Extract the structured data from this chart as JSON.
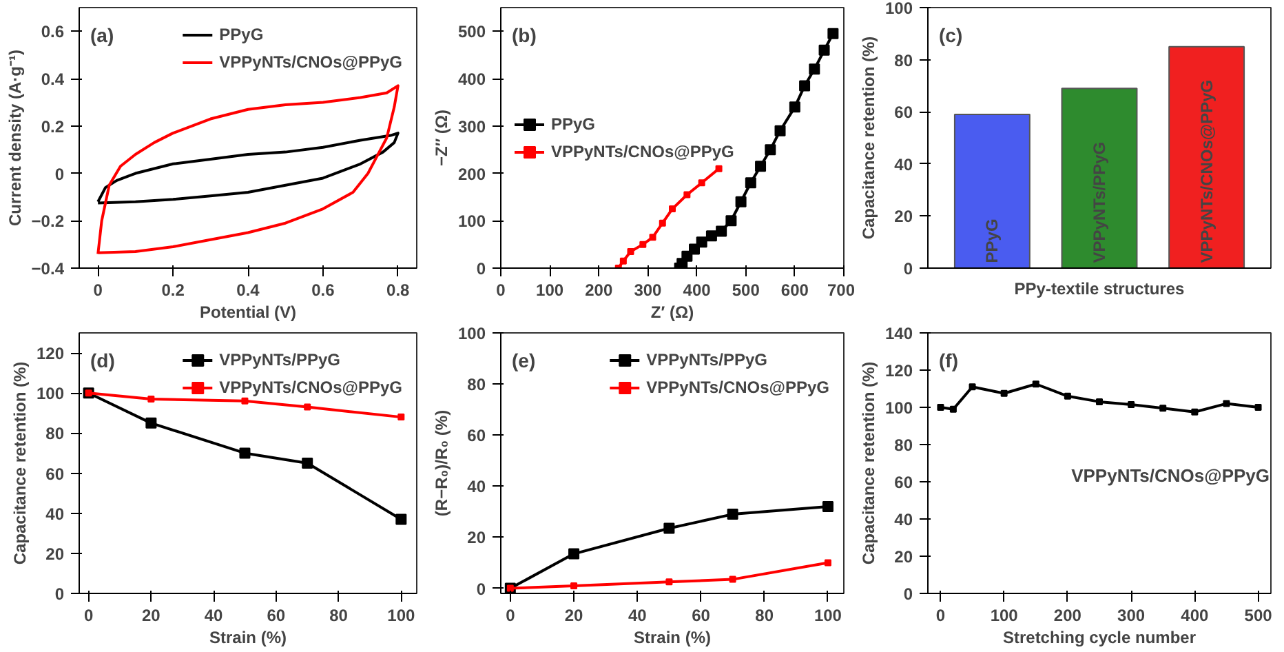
{
  "chart_data": [
    {
      "type": "line",
      "annotations": [
        "(a)"
      ],
      "xlabel": "Potential (V)",
      "ylabel": "Current density (A·g⁻¹)",
      "xlim": [
        -0.05,
        0.85
      ],
      "xticks": [
        0.0,
        0.2,
        0.4,
        0.6,
        0.8
      ],
      "ylim": [
        -0.4,
        0.7
      ],
      "yticks": [
        -0.4,
        -0.2,
        0.0,
        0.2,
        0.4,
        0.6
      ],
      "legend": "top right",
      "grid": false,
      "marker": "none",
      "series": [
        {
          "name": "PPyG",
          "color": "#000000",
          "x": [
            0,
            0.02,
            0.05,
            0.1,
            0.2,
            0.3,
            0.4,
            0.5,
            0.6,
            0.7,
            0.78,
            0.8,
            0.79,
            0.76,
            0.7,
            0.65,
            0.6,
            0.5,
            0.4,
            0.3,
            0.2,
            0.1,
            0.0
          ],
          "values": [
            -0.12,
            -0.06,
            -0.03,
            0.0,
            0.04,
            0.06,
            0.08,
            0.09,
            0.11,
            0.14,
            0.16,
            0.17,
            0.13,
            0.09,
            0.04,
            0.01,
            -0.02,
            -0.05,
            -0.08,
            -0.095,
            -0.11,
            -0.12,
            -0.125
          ]
        },
        {
          "name": "VPPyNTs/CNOs@PPyG",
          "color": "#ff0000",
          "x": [
            0,
            0.01,
            0.03,
            0.06,
            0.1,
            0.15,
            0.2,
            0.3,
            0.4,
            0.5,
            0.6,
            0.7,
            0.77,
            0.8,
            0.79,
            0.77,
            0.74,
            0.72,
            0.68,
            0.6,
            0.5,
            0.4,
            0.3,
            0.2,
            0.1,
            0.0
          ],
          "values": [
            -0.34,
            -0.2,
            -0.05,
            0.03,
            0.08,
            0.13,
            0.17,
            0.23,
            0.27,
            0.29,
            0.3,
            0.32,
            0.34,
            0.37,
            0.28,
            0.15,
            0.06,
            0.0,
            -0.08,
            -0.15,
            -0.21,
            -0.25,
            -0.28,
            -0.31,
            -0.33,
            -0.335
          ]
        }
      ]
    },
    {
      "type": "line",
      "annotations": [
        "(b)"
      ],
      "xlabel": "Z′ (Ω)",
      "ylabel": "−Z″ (Ω)",
      "xlim": [
        0,
        700
      ],
      "xticks": [
        0,
        100,
        200,
        300,
        400,
        500,
        600,
        700
      ],
      "ylim": [
        0,
        550
      ],
      "yticks": [
        0,
        100,
        200,
        300,
        400,
        500
      ],
      "legend": "left",
      "grid": false,
      "marker": "square",
      "series": [
        {
          "name": "PPyG",
          "color": "#000000",
          "x": [
            365,
            370,
            380,
            395,
            410,
            430,
            450,
            470,
            490,
            510,
            530,
            550,
            570,
            600,
            620,
            640,
            660,
            678
          ],
          "values": [
            0,
            10,
            25,
            40,
            55,
            68,
            78,
            100,
            140,
            180,
            215,
            250,
            290,
            340,
            385,
            420,
            460,
            495
          ]
        },
        {
          "name": "VPPyNTs/CNOs@PPyG",
          "color": "#ff0000",
          "x": [
            240,
            250,
            265,
            290,
            310,
            330,
            350,
            380,
            410,
            445
          ],
          "values": [
            0,
            15,
            35,
            50,
            65,
            95,
            125,
            155,
            180,
            210
          ]
        }
      ]
    },
    {
      "type": "bar",
      "annotations": [
        "(c)"
      ],
      "xlabel": "PPy-textile structures",
      "ylabel": "Capacitance retention (%)",
      "categories": [
        "PPyG",
        "VPPyNTs/PPyG",
        "VPPyNTs/CNOs@PPyG"
      ],
      "values": [
        59,
        69,
        85
      ],
      "colors": [
        "#4a5cf0",
        "#2e8b2e",
        "#f02020"
      ],
      "ylim": [
        0,
        100
      ],
      "yticks": [
        0,
        20,
        40,
        60,
        80,
        100
      ],
      "grid": false,
      "tick_labels": "y"
    },
    {
      "type": "line",
      "annotations": [
        "(d)"
      ],
      "xlabel": "Strain (%)",
      "ylabel": "Capacitance retention (%)",
      "xlim": [
        -3,
        105
      ],
      "xticks": [
        0,
        20,
        40,
        60,
        80,
        100
      ],
      "ylim": [
        0,
        130
      ],
      "yticks": [
        0,
        20,
        40,
        60,
        80,
        100,
        120
      ],
      "legend": "top right",
      "grid": false,
      "marker": "square",
      "x": [
        0,
        20,
        50,
        70,
        100
      ],
      "series": [
        {
          "name": "VPPyNTs/PPyG",
          "color": "#000000",
          "values": [
            100,
            85,
            70,
            65,
            37
          ]
        },
        {
          "name": "VPPyNTs/CNOs@PPyG",
          "color": "#ff0000",
          "values": [
            100,
            97,
            96,
            93,
            88
          ]
        }
      ]
    },
    {
      "type": "line",
      "annotations": [
        "(e)"
      ],
      "xlabel": "Strain (%)",
      "ylabel": "(R−R₀)/R₀ (%)",
      "xlim": [
        -3,
        105
      ],
      "xticks": [
        0,
        20,
        40,
        60,
        80,
        100
      ],
      "ylim": [
        -2,
        100
      ],
      "yticks": [
        0,
        20,
        40,
        60,
        80,
        100
      ],
      "legend": "top right",
      "grid": false,
      "marker": "square",
      "x": [
        0,
        20,
        50,
        70,
        100
      ],
      "series": [
        {
          "name": "VPPyNTs/PPyG",
          "color": "#000000",
          "values": [
            0,
            13.5,
            23.5,
            29,
            32
          ]
        },
        {
          "name": "VPPyNTs/CNOs@PPyG",
          "color": "#ff0000",
          "values": [
            0,
            1,
            2.5,
            3.5,
            10
          ]
        }
      ]
    },
    {
      "type": "line",
      "annotations": [
        "(f)",
        "VPPyNTs/CNOs@PPyG"
      ],
      "xlabel": "Stretching cycle number",
      "ylabel": "Capacitance retention (%)",
      "xlim": [
        -20,
        520
      ],
      "xticks": [
        0,
        100,
        200,
        300,
        400,
        500
      ],
      "ylim": [
        0,
        140
      ],
      "yticks": [
        0,
        20,
        40,
        60,
        80,
        100,
        120,
        140
      ],
      "grid": false,
      "marker": "square",
      "x": [
        0,
        20,
        50,
        100,
        150,
        200,
        250,
        300,
        350,
        400,
        450,
        500
      ],
      "series": [
        {
          "color": "#000000",
          "values": [
            100,
            99,
            111,
            107.5,
            112.5,
            106,
            103,
            101.5,
            99.5,
            97.5,
            102,
            100
          ]
        }
      ]
    }
  ]
}
